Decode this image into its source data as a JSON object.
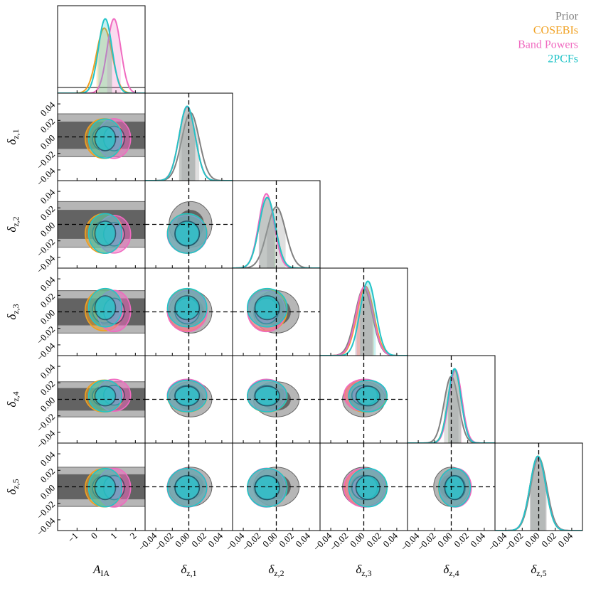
{
  "chart_data": {
    "type": "corner",
    "series": [
      {
        "name": "Prior",
        "color": "#808080"
      },
      {
        "name": "COSEBIs",
        "color": "#f0a020"
      },
      {
        "name": "Band Powers",
        "color": "#f06ac0"
      },
      {
        "name": "2PCFs",
        "color": "#22c4c8"
      }
    ],
    "params": [
      {
        "symbol": "A",
        "sub": "IA",
        "xlim": [
          -2,
          2.5
        ],
        "xticks": [
          {
            "value": -1,
            "label": "−1"
          },
          0,
          1,
          2
        ],
        "posteriors": [
          {
            "mean": 0.4,
            "sd": 0.4
          },
          {
            "mean": 0.9,
            "sd": 0.35
          },
          {
            "mean": 0.45,
            "sd": 0.35
          }
        ]
      },
      {
        "symbol": "δ",
        "sub": "z,1",
        "xlim": [
          -0.053,
          0.053
        ],
        "truth": 0,
        "xticks": [
          {
            "value": -0.04,
            "label": "−0.04"
          },
          {
            "value": -0.02,
            "label": "−0.02"
          },
          {
            "value": 0,
            "label": "0.00"
          },
          0.02,
          0.04
        ],
        "prior": {
          "mean": 0.002,
          "sd": 0.0106
        },
        "posteriors": [
          {
            "mean": -0.002,
            "sd": 0.0098
          },
          {
            "mean": -0.002,
            "sd": 0.0098
          },
          {
            "mean": -0.002,
            "sd": 0.0097
          }
        ]
      },
      {
        "symbol": "δ",
        "sub": "z,2",
        "xlim": [
          -0.053,
          0.053
        ],
        "truth": 0,
        "xticks": [
          {
            "value": -0.04,
            "label": "−0.04"
          },
          {
            "value": -0.02,
            "label": "−0.02"
          },
          {
            "value": 0,
            "label": "0.00"
          },
          0.02,
          0.04
        ],
        "prior": {
          "mean": 0,
          "sd": 0.0113
        },
        "posteriors": [
          {
            "mean": -0.011,
            "sd": 0.0098
          },
          {
            "mean": -0.012,
            "sd": 0.0093
          },
          {
            "mean": -0.011,
            "sd": 0.0098
          }
        ]
      },
      {
        "symbol": "δ",
        "sub": "z,3",
        "xlim": [
          -0.053,
          0.053
        ],
        "truth": 0,
        "xticks": [
          {
            "value": -0.04,
            "label": "−0.04"
          },
          {
            "value": -0.02,
            "label": "−0.02"
          },
          {
            "value": 0,
            "label": "0.00"
          },
          0.02,
          0.04
        ],
        "prior": {
          "mean": 0,
          "sd": 0.0105
        },
        "posteriors": [
          {
            "mean": 0.002,
            "sd": 0.0102
          },
          {
            "mean": 0.001,
            "sd": 0.0102
          },
          {
            "mean": 0.005,
            "sd": 0.0095
          }
        ]
      },
      {
        "symbol": "δ",
        "sub": "z,4",
        "xlim": [
          -0.053,
          0.053
        ],
        "truth": 0,
        "xticks": [
          {
            "value": -0.04,
            "label": "−0.04"
          },
          {
            "value": -0.02,
            "label": "−0.02"
          },
          {
            "value": 0,
            "label": "0.00"
          },
          0.02,
          0.04
        ],
        "prior": {
          "mean": 0,
          "sd": 0.0087
        },
        "posteriors": [
          {
            "mean": 0.004,
            "sd": 0.0079
          },
          {
            "mean": 0.005,
            "sd": 0.0079
          },
          {
            "mean": 0.004,
            "sd": 0.0078
          }
        ]
      },
      {
        "symbol": "δ",
        "sub": "z,5",
        "xlim": [
          -0.053,
          0.053
        ],
        "truth": 0,
        "xticks": [
          {
            "value": -0.04,
            "label": "−0.04"
          },
          {
            "value": -0.02,
            "label": "−0.02"
          },
          {
            "value": 0,
            "label": "0.00"
          },
          0.02,
          0.04
        ],
        "prior": {
          "mean": 0,
          "sd": 0.0097
        },
        "posteriors": [
          {
            "mean": -0.001,
            "sd": 0.0095
          },
          {
            "mean": -0.001,
            "sd": 0.0096
          },
          {
            "mean": -0.001,
            "sd": 0.0095
          }
        ]
      }
    ]
  }
}
